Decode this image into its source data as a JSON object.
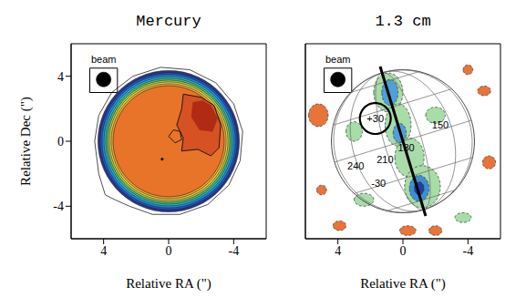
{
  "chart_data": [
    {
      "type": "contour",
      "title": "Mercury",
      "xlabel": "Relative RA (\")",
      "ylabel": "Relative Dec (\")",
      "xlim": [
        6,
        -6
      ],
      "ylim": [
        -6,
        6
      ],
      "xticks": [
        4,
        0,
        -4
      ],
      "yticks": [
        -4,
        0,
        4
      ],
      "beam": {
        "label": "beam",
        "x": 4,
        "y": 3.8,
        "radius": 0.45
      },
      "disk": {
        "center": [
          0,
          0
        ],
        "radii": [
          4.35,
          4.22,
          4.1,
          3.98,
          3.87,
          3.76,
          3.65,
          3.54,
          3.42
        ],
        "colors": [
          "#2a3590",
          "#2055c8",
          "#1f8fe0",
          "#26bdd0",
          "#4fc080",
          "#a8d048",
          "#f0d840",
          "#f0a832",
          "#e8742a"
        ]
      },
      "outline": [
        [
          4.55,
          0
        ],
        [
          4.3,
          1.6
        ],
        [
          3.5,
          3.0
        ],
        [
          2.2,
          4.0
        ],
        [
          0.5,
          4.55
        ],
        [
          -1.3,
          4.4
        ],
        [
          -2.9,
          3.6
        ],
        [
          -4.0,
          2.3
        ],
        [
          -4.55,
          0.6
        ],
        [
          -4.4,
          -1.2
        ],
        [
          -3.7,
          -2.7
        ],
        [
          -2.4,
          -3.9
        ],
        [
          -0.7,
          -4.5
        ],
        [
          1.0,
          -4.5
        ],
        [
          2.4,
          -4.0
        ],
        [
          3.3,
          -3.6
        ],
        [
          3.9,
          -3.3
        ],
        [
          4.3,
          -2.0
        ],
        [
          4.55,
          0
        ]
      ],
      "regions": [
        {
          "color": "#d65222",
          "points": [
            [
              -0.9,
              2.9
            ],
            [
              -0.8,
              2.0
            ],
            [
              -0.5,
              1.0
            ],
            [
              -0.9,
              0.2
            ],
            [
              -0.8,
              -0.6
            ],
            [
              -1.8,
              -0.5
            ],
            [
              -2.6,
              -0.9
            ],
            [
              -3.1,
              -0.4
            ],
            [
              -3.2,
              1.0
            ],
            [
              -2.8,
              2.2
            ],
            [
              -2.0,
              2.7
            ],
            [
              -0.9,
              2.9
            ]
          ]
        },
        {
          "color": "#b02a14",
          "points": [
            [
              -1.5,
              2.4
            ],
            [
              -1.4,
              1.5
            ],
            [
              -1.9,
              0.7
            ],
            [
              -2.7,
              0.6
            ],
            [
              -3.0,
              1.4
            ],
            [
              -2.6,
              2.2
            ],
            [
              -2.1,
              2.5
            ],
            [
              -1.5,
              2.4
            ]
          ]
        }
      ],
      "contours": [
        [
          [
            -0.9,
            2.9
          ],
          [
            -0.8,
            2.0
          ],
          [
            -0.5,
            1.0
          ],
          [
            -0.9,
            0.2
          ],
          [
            -0.8,
            -0.6
          ],
          [
            -1.8,
            -0.5
          ],
          [
            -2.6,
            -0.9
          ],
          [
            -3.1,
            -0.4
          ],
          [
            -3.2,
            1.0
          ],
          [
            -2.8,
            2.2
          ],
          [
            -2.0,
            2.7
          ],
          [
            -0.9,
            2.9
          ]
        ],
        [
          [
            0.0,
            0.3
          ],
          [
            -0.3,
            0.7
          ],
          [
            -0.7,
            0.6
          ],
          [
            -0.8,
            0.1
          ],
          [
            -0.4,
            -0.1
          ],
          [
            0.0,
            0.3
          ]
        ]
      ],
      "points": [
        {
          "x": 0.4,
          "y": -1.1
        }
      ]
    },
    {
      "type": "contour",
      "title": "1.3 cm",
      "xlabel": "Relative RA (\")",
      "xlim": [
        6,
        -6
      ],
      "ylim": [
        -6,
        6
      ],
      "xticks": [
        4,
        0,
        -4
      ],
      "yticks": [
        -4,
        0,
        4
      ],
      "tick_labels": "x",
      "beam": {
        "label": "beam",
        "x": 4,
        "y": 3.8,
        "radius": 0.45
      },
      "blobs": [
        {
          "x": 0.9,
          "y": 3.0,
          "rx": 0.9,
          "ry": 1.2,
          "color": "#a8dca8"
        },
        {
          "x": 0.3,
          "y": 1.0,
          "rx": 0.8,
          "ry": 1.3,
          "color": "#a8dca8"
        },
        {
          "x": -0.4,
          "y": -1.0,
          "rx": 0.9,
          "ry": 1.2,
          "color": "#a8dca8"
        },
        {
          "x": -1.2,
          "y": -2.8,
          "rx": 1.1,
          "ry": 1.3,
          "color": "#a8dca8"
        },
        {
          "x": -2.0,
          "y": 1.6,
          "rx": 0.6,
          "ry": 0.5,
          "color": "#a8dca8"
        },
        {
          "x": 2.4,
          "y": -3.6,
          "rx": 0.6,
          "ry": 0.4,
          "color": "#a8dca8"
        },
        {
          "x": -3.7,
          "y": -4.7,
          "rx": 0.5,
          "ry": 0.3,
          "color": "#a8dca8"
        },
        {
          "x": 3.0,
          "y": 0.6,
          "rx": 0.5,
          "ry": 0.6,
          "color": "#a8dca8"
        },
        {
          "x": 0.8,
          "y": 3.0,
          "rx": 0.5,
          "ry": 0.8,
          "color": "#4fa0d8"
        },
        {
          "x": 0.2,
          "y": 0.5,
          "rx": 0.4,
          "ry": 0.6,
          "color": "#4fa0d8"
        },
        {
          "x": -1.0,
          "y": -2.9,
          "rx": 0.6,
          "ry": 0.8,
          "color": "#3f8fd0"
        },
        {
          "x": -1.0,
          "y": -2.9,
          "rx": 0.3,
          "ry": 0.4,
          "color": "#2040a0"
        },
        {
          "x": 5.2,
          "y": 1.6,
          "rx": 0.6,
          "ry": 0.7,
          "color": "#e8743a"
        },
        {
          "x": -4.0,
          "y": 4.4,
          "rx": 0.3,
          "ry": 0.3,
          "color": "#e8743a"
        },
        {
          "x": -5.0,
          "y": 3.1,
          "rx": 0.4,
          "ry": 0.3,
          "color": "#e8743a"
        },
        {
          "x": -5.3,
          "y": -1.3,
          "rx": 0.4,
          "ry": 0.4,
          "color": "#e8743a"
        },
        {
          "x": 3.9,
          "y": -5.2,
          "rx": 0.4,
          "ry": 0.3,
          "color": "#e8743a"
        },
        {
          "x": -0.3,
          "y": -5.5,
          "rx": 0.5,
          "ry": 0.3,
          "color": "#e8743a"
        },
        {
          "x": -2.0,
          "y": -5.5,
          "rx": 0.4,
          "ry": 0.3,
          "color": "#e8743a"
        },
        {
          "x": 5.0,
          "y": -3.0,
          "rx": 0.3,
          "ry": 0.3,
          "color": "#e8743a"
        }
      ],
      "globe": {
        "radius": 4.4,
        "pole": [
          1.28,
          4.2
        ],
        "central_longitude": 195,
        "latitudes": [
          -60,
          -30,
          0,
          30,
          60
        ],
        "longitudes": [
          270,
          240,
          210,
          180,
          150,
          120
        ]
      },
      "axis_line": [
        [
          1.4,
          4.6
        ],
        [
          -1.4,
          -4.6
        ]
      ],
      "circle": {
        "x": 1.7,
        "y": 1.4,
        "radius": 0.95
      },
      "annotations": [
        {
          "text": "+30",
          "x": 1.7,
          "y": 1.4
        },
        {
          "text": "240",
          "x": 2.9,
          "y": -1.5
        },
        {
          "text": "210",
          "x": 1.1,
          "y": -1.1
        },
        {
          "text": "180",
          "x": -0.2,
          "y": -0.4
        },
        {
          "text": "150",
          "x": -2.3,
          "y": 1.0
        },
        {
          "text": "-30",
          "x": 1.5,
          "y": -2.6
        }
      ]
    }
  ]
}
